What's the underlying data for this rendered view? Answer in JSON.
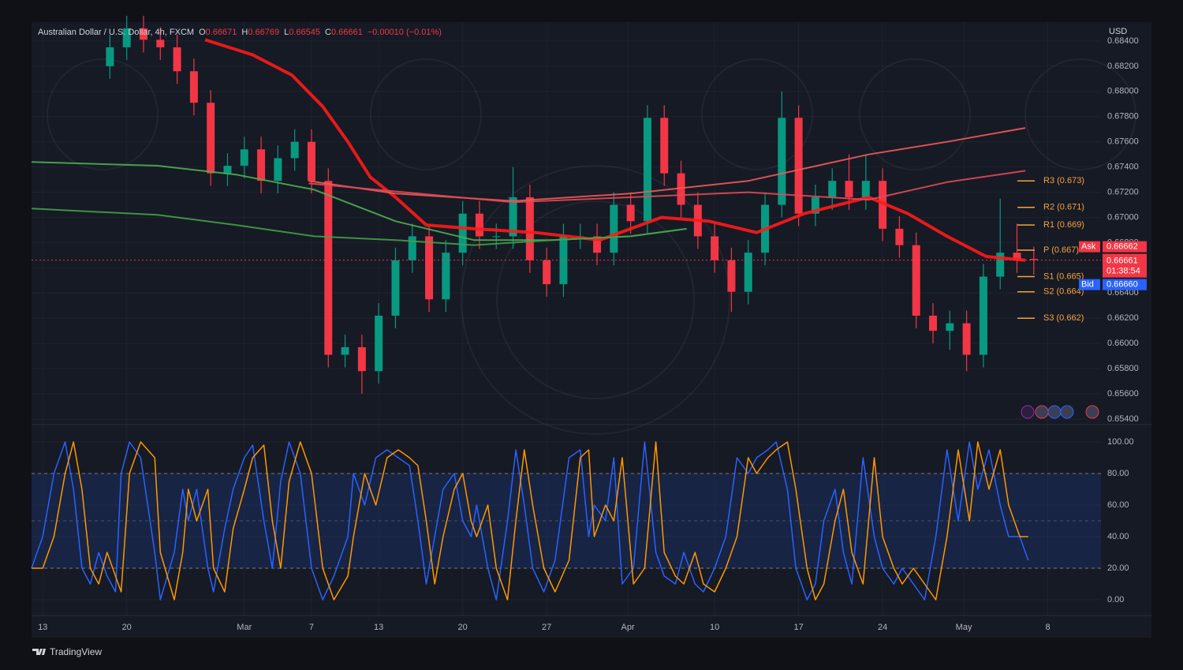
{
  "branding": "TradingView",
  "chart_data": [
    {
      "type": "candlestick",
      "title": "Australian Dollar / U.S. Dollar, 4h, FXCM",
      "ohlc": [
        {
          "label": "O",
          "value": 0.66671
        },
        {
          "label": "H",
          "value": 0.66769
        },
        {
          "label": "L",
          "value": 0.66545
        },
        {
          "label": "C",
          "value": 0.66661
        }
      ],
      "change": "−0.00010 (−0.01%)",
      "y_axis_label": "USD",
      "up_color": "#089981",
      "down_color": "#f23645",
      "grid": true,
      "xlim": [
        0,
        382
      ],
      "ylim": [
        0.65356,
        0.6855
      ],
      "xticks": [
        {
          "value": 4,
          "label": "13"
        },
        {
          "value": 34,
          "label": "20"
        },
        {
          "value": 76,
          "label": "Mar"
        },
        {
          "value": 100,
          "label": "7"
        },
        {
          "value": 124,
          "label": "13"
        },
        {
          "value": 154,
          "label": "20"
        },
        {
          "value": 184,
          "label": "27"
        },
        {
          "value": 213,
          "label": "Apr"
        },
        {
          "value": 244,
          "label": "10"
        },
        {
          "value": 274,
          "label": "17"
        },
        {
          "value": 304,
          "label": "24"
        },
        {
          "value": 333,
          "label": "May"
        },
        {
          "value": 363,
          "label": "8"
        }
      ],
      "yticks": [
        {
          "value": 0.654,
          "label": "0.65400"
        },
        {
          "value": 0.656,
          "label": "0.65600"
        },
        {
          "value": 0.658,
          "label": "0.65800"
        },
        {
          "value": 0.66,
          "label": "0.66000"
        },
        {
          "value": 0.662,
          "label": "0.66200"
        },
        {
          "value": 0.664,
          "label": "0.66400"
        },
        {
          "value": 0.666,
          "label": "0.66600"
        },
        {
          "value": 0.668,
          "label": "0.66800"
        },
        {
          "value": 0.67,
          "label": "0.67000"
        },
        {
          "value": 0.672,
          "label": "0.67200"
        },
        {
          "value": 0.674,
          "label": "0.67400"
        },
        {
          "value": 0.676,
          "label": "0.67600"
        },
        {
          "value": 0.678,
          "label": "0.67800"
        },
        {
          "value": 0.68,
          "label": "0.68000"
        },
        {
          "value": 0.682,
          "label": "0.68200"
        },
        {
          "value": 0.684,
          "label": "0.68400"
        }
      ],
      "x": [
        28,
        34,
        40,
        46,
        52,
        58,
        64,
        70,
        76,
        82,
        88,
        94,
        100,
        106,
        112,
        118,
        124,
        130,
        136,
        142,
        148,
        154,
        160,
        166,
        172,
        178,
        184,
        190,
        196,
        202,
        208,
        214,
        220,
        226,
        232,
        238,
        244,
        250,
        256,
        262,
        268,
        274,
        280,
        286,
        292,
        298,
        304,
        310,
        316,
        322,
        328,
        334,
        340,
        346,
        352,
        358
      ],
      "open": [
        0.682,
        0.6835,
        0.685,
        0.6841,
        0.6835,
        0.6816,
        0.6791,
        0.6735,
        0.6741,
        0.6754,
        0.6729,
        0.6747,
        0.676,
        0.6729,
        0.6591,
        0.6597,
        0.6578,
        0.6622,
        0.6666,
        0.6685,
        0.6635,
        0.6672,
        0.6703,
        0.6685,
        0.6685,
        0.6716,
        0.6666,
        0.6647,
        0.6685,
        0.6685,
        0.6672,
        0.671,
        0.6697,
        0.6779,
        0.6735,
        0.671,
        0.6685,
        0.6666,
        0.6641,
        0.6672,
        0.671,
        0.6779,
        0.6703,
        0.6716,
        0.6729,
        0.6716,
        0.6729,
        0.6691,
        0.6678,
        0.6622,
        0.661,
        0.6616,
        0.6591,
        0.6653,
        0.6672,
        0.66671
      ],
      "high": [
        0.6845,
        0.686,
        0.686,
        0.6851,
        0.6845,
        0.6826,
        0.6801,
        0.6751,
        0.6764,
        0.6764,
        0.6757,
        0.677,
        0.677,
        0.6739,
        0.6607,
        0.6607,
        0.6632,
        0.6676,
        0.6695,
        0.6695,
        0.6682,
        0.6713,
        0.6713,
        0.6695,
        0.674,
        0.6726,
        0.6676,
        0.6695,
        0.6695,
        0.6695,
        0.672,
        0.672,
        0.6789,
        0.6789,
        0.6745,
        0.672,
        0.6695,
        0.6676,
        0.6682,
        0.672,
        0.68,
        0.6789,
        0.6726,
        0.6739,
        0.675,
        0.675,
        0.6739,
        0.6701,
        0.6688,
        0.6632,
        0.6626,
        0.6626,
        0.6663,
        0.6715,
        0.6695,
        0.66769
      ],
      "low": [
        0.681,
        0.6825,
        0.6831,
        0.6825,
        0.6806,
        0.6781,
        0.6725,
        0.6725,
        0.6731,
        0.6719,
        0.6719,
        0.6737,
        0.6719,
        0.6581,
        0.6581,
        0.656,
        0.6568,
        0.6612,
        0.6656,
        0.6625,
        0.6625,
        0.6662,
        0.6675,
        0.6675,
        0.6675,
        0.6656,
        0.6637,
        0.6637,
        0.6675,
        0.6662,
        0.6662,
        0.6687,
        0.6687,
        0.6725,
        0.67,
        0.6675,
        0.6656,
        0.6625,
        0.6631,
        0.6662,
        0.67,
        0.6693,
        0.6693,
        0.6706,
        0.6706,
        0.6706,
        0.6681,
        0.6668,
        0.6612,
        0.66,
        0.6595,
        0.6578,
        0.6581,
        0.6643,
        0.6656,
        0.66545
      ],
      "close": [
        0.6835,
        0.685,
        0.6841,
        0.6835,
        0.6816,
        0.6791,
        0.6735,
        0.6741,
        0.6754,
        0.6729,
        0.6747,
        0.676,
        0.6729,
        0.6591,
        0.6597,
        0.6578,
        0.6622,
        0.6666,
        0.6685,
        0.6635,
        0.6672,
        0.6703,
        0.6685,
        0.6685,
        0.6716,
        0.6666,
        0.6647,
        0.6685,
        0.6685,
        0.6672,
        0.671,
        0.6697,
        0.6779,
        0.6735,
        0.671,
        0.6685,
        0.6666,
        0.6641,
        0.6672,
        0.671,
        0.6779,
        0.6703,
        0.6716,
        0.6729,
        0.6716,
        0.6729,
        0.6691,
        0.6678,
        0.6622,
        0.661,
        0.6616,
        0.6591,
        0.6653,
        0.6672,
        0.6666,
        0.66661
      ],
      "lines": [
        {
          "color": "#ff1a1a",
          "x": [
            62,
            79,
            93,
            104,
            113,
            121,
            130,
            141,
            158,
            180,
            203,
            225,
            242,
            259,
            276,
            299,
            313,
            327,
            341,
            355
          ],
          "values": [
            0.6841,
            0.6829,
            0.6813,
            0.6788,
            0.676,
            0.6732,
            0.6716,
            0.6694,
            0.6691,
            0.6688,
            0.6682,
            0.67,
            0.6697,
            0.6688,
            0.6703,
            0.6716,
            0.6703,
            0.6685,
            0.6669,
            0.6666
          ]
        },
        {
          "color": "#f05a5a",
          "x": [
            99,
            130,
            172,
            214,
            256,
            299,
            327,
            355
          ],
          "values": [
            0.6729,
            0.6719,
            0.6713,
            0.6719,
            0.6729,
            0.675,
            0.676,
            0.6771
          ]
        },
        {
          "color": "#e04a55",
          "x": [
            99,
            172,
            256,
            299,
            327,
            355
          ],
          "values": [
            0.6727,
            0.6712,
            0.672,
            0.6714,
            0.6728,
            0.6737
          ]
        },
        {
          "color": "#4caf50",
          "x": [
            0,
            45,
            73,
            101,
            130,
            158,
            186,
            214,
            234
          ],
          "values": [
            0.6744,
            0.6741,
            0.6734,
            0.6722,
            0.6697,
            0.6682,
            0.6682,
            0.6685,
            0.6691
          ]
        },
        {
          "color": "#43a047",
          "x": [
            0,
            45,
            73,
            101,
            130,
            158,
            186,
            214,
            234
          ],
          "values": [
            0.6707,
            0.6702,
            0.6694,
            0.6685,
            0.6682,
            0.6678,
            0.6682,
            0.6685,
            0.6691
          ]
        }
      ],
      "pivot_color": "#f7a23b",
      "pivots": [
        {
          "label": "R3 (0.673)",
          "value": 0.6729
        },
        {
          "label": "R2 (0.671)",
          "value": 0.6708
        },
        {
          "label": "R1 (0.669)",
          "value": 0.6694
        },
        {
          "label": "P (0.667)",
          "value": 0.6674
        },
        {
          "label": "S1 (0.665)",
          "value": 0.6653
        },
        {
          "label": "S2 (0.664)",
          "value": 0.6641
        },
        {
          "label": "S3 (0.662)",
          "value": 0.662
        }
      ],
      "price_tags": [
        {
          "name": "Ask",
          "value": 0.66662,
          "color": "#f23645"
        },
        {
          "value": 0.66661,
          "countdown": "01:38:54",
          "color": "#f23645"
        },
        {
          "name": "Bid",
          "value": 0.6666,
          "label": "0.66660",
          "color": "#2962ff"
        }
      ]
    },
    {
      "type": "line",
      "grid": true,
      "xlim": [
        0,
        382
      ],
      "ylim": [
        -10,
        110
      ],
      "yticks": [
        {
          "value": 0,
          "label": "0.00"
        },
        {
          "value": 20,
          "label": "20.00"
        },
        {
          "value": 40,
          "label": "40.00"
        },
        {
          "value": 60,
          "label": "60.00"
        },
        {
          "value": 80,
          "label": "80.00"
        },
        {
          "value": 100,
          "label": "100.00"
        }
      ],
      "bands": [
        20,
        80
      ],
      "midline": 50,
      "band_color": "#2962ff",
      "x": [
        0,
        4,
        8,
        12,
        15,
        18,
        21,
        24,
        27,
        30,
        32,
        35,
        39,
        44,
        46,
        51,
        54,
        56,
        59,
        63,
        65,
        69,
        72,
        76,
        79,
        83,
        86,
        89,
        92,
        96,
        100,
        104,
        108,
        113,
        115,
        119,
        123,
        127,
        131,
        135,
        138,
        141,
        144,
        147,
        151,
        154,
        157,
        159,
        163,
        166,
        170,
        173,
        176,
        179,
        183,
        187,
        192,
        196,
        199,
        201,
        205,
        208,
        211,
        215,
        219,
        223,
        226,
        230,
        233,
        237,
        240,
        244,
        248,
        252,
        256,
        259,
        263,
        266,
        270,
        273,
        277,
        280,
        283,
        287,
        290,
        293,
        297,
        301,
        304,
        308,
        311,
        315,
        319,
        323,
        327,
        331,
        335,
        338,
        342,
        346,
        349,
        353,
        356
      ],
      "series": [
        {
          "color": "#2962ff",
          "values": [
            20,
            40,
            80,
            100,
            70,
            20,
            10,
            30,
            15,
            5,
            80,
            100,
            90,
            30,
            0,
            30,
            70,
            50,
            70,
            20,
            5,
            45,
            70,
            90,
            98,
            50,
            20,
            75,
            100,
            80,
            20,
            0,
            15,
            40,
            80,
            60,
            90,
            95,
            90,
            85,
            50,
            10,
            40,
            70,
            80,
            50,
            40,
            60,
            20,
            0,
            50,
            95,
            60,
            20,
            5,
            25,
            90,
            95,
            40,
            60,
            50,
            90,
            10,
            20,
            100,
            30,
            15,
            10,
            30,
            10,
            5,
            20,
            40,
            90,
            80,
            90,
            95,
            100,
            70,
            20,
            0,
            10,
            50,
            70,
            30,
            10,
            90,
            40,
            20,
            10,
            20,
            10,
            0,
            40,
            95,
            50,
            100,
            70,
            95,
            60,
            40,
            40,
            25
          ]
        },
        {
          "color": "#ff9800",
          "values": [
            20,
            20,
            40,
            80,
            100,
            70,
            20,
            10,
            30,
            15,
            5,
            80,
            100,
            90,
            30,
            0,
            30,
            70,
            50,
            70,
            20,
            5,
            45,
            70,
            90,
            98,
            50,
            20,
            75,
            100,
            80,
            20,
            0,
            15,
            40,
            80,
            60,
            90,
            95,
            90,
            85,
            50,
            10,
            40,
            70,
            80,
            50,
            40,
            60,
            20,
            0,
            50,
            95,
            60,
            20,
            5,
            25,
            90,
            95,
            40,
            60,
            50,
            90,
            10,
            20,
            100,
            30,
            15,
            10,
            30,
            10,
            5,
            20,
            40,
            90,
            80,
            90,
            95,
            100,
            70,
            20,
            0,
            10,
            50,
            70,
            30,
            10,
            90,
            40,
            20,
            10,
            20,
            10,
            0,
            40,
            95,
            50,
            100,
            70,
            95,
            60,
            40,
            40
          ]
        }
      ]
    }
  ]
}
